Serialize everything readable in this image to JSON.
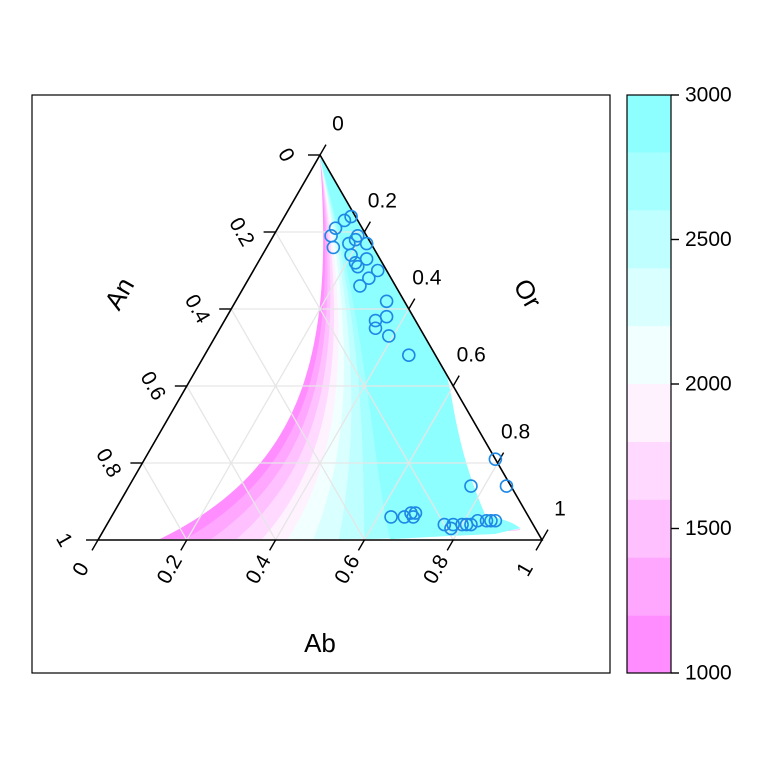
{
  "chart_data": {
    "type": "scatter",
    "subtype": "ternary-contour",
    "title": "",
    "axes": {
      "bottom": {
        "label": "Ab",
        "ticks": [
          "0",
          "0.2",
          "0.4",
          "0.6",
          "0.8",
          "1"
        ]
      },
      "left": {
        "label": "An",
        "ticks": [
          "0",
          "0.2",
          "0.4",
          "0.6",
          "0.8",
          "1"
        ]
      },
      "right": {
        "label": "Or",
        "ticks": [
          "1",
          "0.8",
          "0.6",
          "0.4",
          "0.2",
          "0"
        ]
      }
    },
    "grid": true,
    "colorbar": {
      "range": [
        1000,
        3000
      ],
      "ticks": [
        "1000",
        "1500",
        "2000",
        "2500",
        "3000"
      ],
      "levels": [
        1000,
        1200,
        1400,
        1600,
        1800,
        2000,
        2200,
        2400,
        2600,
        2800,
        3000
      ],
      "low_color": "#ff80ff",
      "mid_color": "#ffffff",
      "high_color": "#80ffff"
    },
    "point_color": "#1e88e5",
    "points": [
      {
        "ab": 0.15,
        "an": 0.01,
        "or": 0.84
      },
      {
        "ab": 0.14,
        "an": 0.03,
        "or": 0.83
      },
      {
        "ab": 0.13,
        "an": 0.06,
        "or": 0.81
      },
      {
        "ab": 0.13,
        "an": 0.08,
        "or": 0.79
      },
      {
        "ab": 0.19,
        "an": 0.02,
        "or": 0.79
      },
      {
        "ab": 0.19,
        "an": 0.03,
        "or": 0.78
      },
      {
        "ab": 0.18,
        "an": 0.05,
        "or": 0.77
      },
      {
        "ab": 0.15,
        "an": 0.09,
        "or": 0.76
      },
      {
        "ab": 0.2,
        "an": 0.06,
        "or": 0.74
      },
      {
        "ab": 0.22,
        "an": 0.01,
        "or": 0.77
      },
      {
        "ab": 0.24,
        "an": 0.03,
        "or": 0.73
      },
      {
        "ab": 0.22,
        "an": 0.06,
        "or": 0.72
      },
      {
        "ab": 0.23,
        "an": 0.06,
        "or": 0.71
      },
      {
        "ab": 0.28,
        "an": 0.02,
        "or": 0.7
      },
      {
        "ab": 0.27,
        "an": 0.05,
        "or": 0.68
      },
      {
        "ab": 0.26,
        "an": 0.08,
        "or": 0.66
      },
      {
        "ab": 0.34,
        "an": 0.04,
        "or": 0.62
      },
      {
        "ab": 0.36,
        "an": 0.06,
        "or": 0.58
      },
      {
        "ab": 0.34,
        "an": 0.09,
        "or": 0.57
      },
      {
        "ab": 0.35,
        "an": 0.1,
        "or": 0.55
      },
      {
        "ab": 0.39,
        "an": 0.08,
        "or": 0.53
      },
      {
        "ab": 0.46,
        "an": 0.06,
        "or": 0.48
      },
      {
        "ab": 0.79,
        "an": 0.0,
        "or": 0.21
      },
      {
        "ab": 0.77,
        "an": 0.09,
        "or": 0.14
      },
      {
        "ab": 0.85,
        "an": 0.01,
        "or": 0.14
      },
      {
        "ab": 0.67,
        "an": 0.26,
        "or": 0.07
      },
      {
        "ab": 0.68,
        "an": 0.25,
        "or": 0.07
      },
      {
        "ab": 0.63,
        "an": 0.31,
        "or": 0.06
      },
      {
        "ab": 0.66,
        "an": 0.28,
        "or": 0.06
      },
      {
        "ab": 0.68,
        "an": 0.26,
        "or": 0.06
      },
      {
        "ab": 0.76,
        "an": 0.2,
        "or": 0.04
      },
      {
        "ab": 0.78,
        "an": 0.18,
        "or": 0.04
      },
      {
        "ab": 0.78,
        "an": 0.19,
        "or": 0.03
      },
      {
        "ab": 0.8,
        "an": 0.16,
        "or": 0.04
      },
      {
        "ab": 0.81,
        "an": 0.15,
        "or": 0.04
      },
      {
        "ab": 0.82,
        "an": 0.14,
        "or": 0.04
      },
      {
        "ab": 0.83,
        "an": 0.12,
        "or": 0.05
      },
      {
        "ab": 0.85,
        "an": 0.1,
        "or": 0.05
      },
      {
        "ab": 0.86,
        "an": 0.09,
        "or": 0.05
      },
      {
        "ab": 0.87,
        "an": 0.08,
        "or": 0.05
      }
    ]
  }
}
